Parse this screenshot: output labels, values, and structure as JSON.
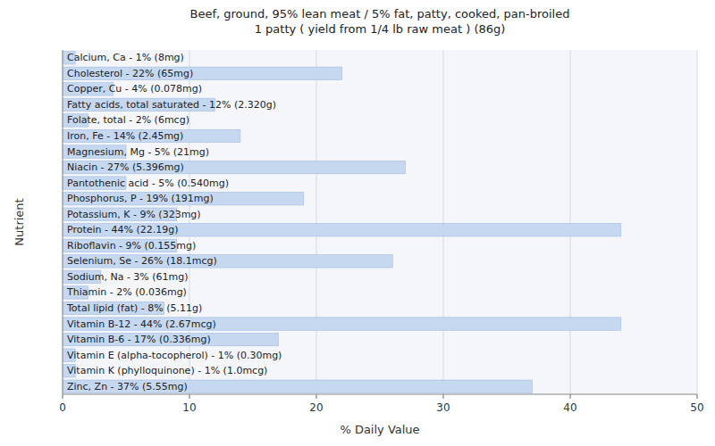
{
  "chart_data": {
    "type": "bar",
    "orientation": "horizontal",
    "title": "Beef, ground, 95% lean meat / 5% fat, patty, cooked, pan-broiled\n1 patty ( yield from 1/4 lb raw meat ) (86g)",
    "xlabel": "% Daily Value",
    "ylabel": "Nutrient",
    "categories": [
      "Calcium, Ca - 1% (8mg)",
      "Cholesterol - 22% (65mg)",
      "Copper, Cu - 4% (0.078mg)",
      "Fatty acids, total saturated - 12% (2.320g)",
      "Folate, total - 2% (6mcg)",
      "Iron, Fe - 14% (2.45mg)",
      "Magnesium, Mg - 5% (21mg)",
      "Niacin - 27% (5.396mg)",
      "Pantothenic acid - 5% (0.540mg)",
      "Phosphorus, P - 19% (191mg)",
      "Potassium, K - 9% (323mg)",
      "Protein - 44% (22.19g)",
      "Riboflavin - 9% (0.155mg)",
      "Selenium, Se - 26% (18.1mcg)",
      "Sodium, Na - 3% (61mg)",
      "Thiamin - 2% (0.036mg)",
      "Total lipid (fat) - 8% (5.11g)",
      "Vitamin B-12 - 44% (2.67mcg)",
      "Vitamin B-6 - 17% (0.336mg)",
      "Vitamin E (alpha-tocopherol) - 1% (0.30mg)",
      "Vitamin K (phylloquinone) - 1% (1.0mcg)",
      "Zinc, Zn - 37% (5.55mg)"
    ],
    "values": [
      1,
      22,
      4,
      12,
      2,
      14,
      5,
      27,
      5,
      19,
      9,
      44,
      9,
      26,
      3,
      2,
      8,
      44,
      17,
      1,
      1,
      37
    ],
    "color": "#c5d8f0",
    "xlim": [
      0,
      50
    ],
    "xticks": [
      0,
      10,
      20,
      30,
      40,
      50
    ],
    "grid": true,
    "tick_labels": "x"
  }
}
